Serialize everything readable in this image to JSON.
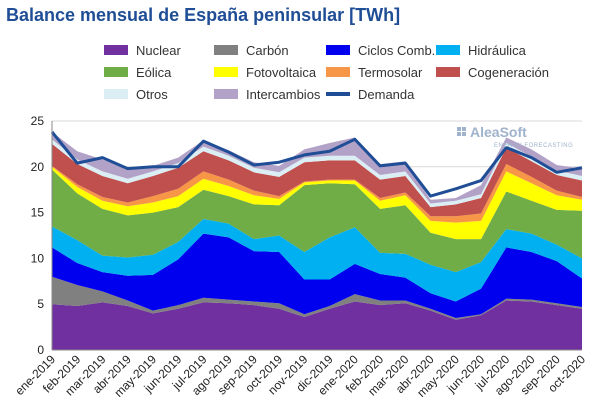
{
  "chart_data": {
    "type": "area",
    "stacked": true,
    "title": "Balance mensual de España peninsular [TWh]",
    "xlabel": "",
    "ylabel": "",
    "ylim": [
      0,
      25
    ],
    "yticks": [
      0,
      5,
      10,
      15,
      20,
      25
    ],
    "grid": true,
    "legend_position": "top",
    "categories": [
      "ene-2019",
      "feb-2019",
      "mar-2019",
      "abr-2019",
      "may-2019",
      "jun-2019",
      "jul-2019",
      "ago-2019",
      "sep-2019",
      "oct-2019",
      "nov-2019",
      "dic-2019",
      "ene-2020",
      "feb-2020",
      "mar-2020",
      "abr-2020",
      "may-2020",
      "jun-2020",
      "jul-2020",
      "ago-2020",
      "sep-2020",
      "oct-2020"
    ],
    "series": [
      {
        "name": "Nuclear",
        "color": "#7030a0",
        "values": [
          5.0,
          4.8,
          5.2,
          4.8,
          4.0,
          4.5,
          5.2,
          5.1,
          4.9,
          4.5,
          3.6,
          4.5,
          5.3,
          4.9,
          5.1,
          4.3,
          3.3,
          3.8,
          5.4,
          5.3,
          4.9,
          4.5
        ]
      },
      {
        "name": "Carbón",
        "color": "#808080",
        "values": [
          3.0,
          2.3,
          1.2,
          0.6,
          0.3,
          0.4,
          0.5,
          0.4,
          0.4,
          0.6,
          0.3,
          0.3,
          0.8,
          0.5,
          0.3,
          0.2,
          0.2,
          0.1,
          0.2,
          0.2,
          0.2,
          0.2
        ]
      },
      {
        "name": "Ciclos Comb.",
        "color": "#0000ee",
        "values": [
          3.2,
          2.4,
          2.1,
          2.7,
          3.9,
          5.0,
          7.0,
          6.8,
          5.5,
          5.6,
          3.8,
          2.9,
          3.3,
          2.9,
          2.5,
          1.7,
          1.8,
          2.8,
          5.6,
          5.2,
          4.6,
          3.1
        ]
      },
      {
        "name": "Hidráulica",
        "color": "#00b0f0",
        "values": [
          2.3,
          2.5,
          1.8,
          2.0,
          2.2,
          1.9,
          1.6,
          1.5,
          1.3,
          1.8,
          3.0,
          4.6,
          4.0,
          2.3,
          2.6,
          3.1,
          3.2,
          2.9,
          2.0,
          2.0,
          1.8,
          2.2
        ]
      },
      {
        "name": "Eólica",
        "color": "#70ad47",
        "values": [
          6.2,
          5.1,
          5.1,
          4.6,
          4.6,
          3.8,
          3.2,
          3.0,
          3.8,
          3.3,
          7.3,
          5.9,
          4.7,
          4.8,
          5.3,
          3.5,
          3.6,
          2.5,
          4.1,
          3.6,
          3.8,
          5.2
        ]
      },
      {
        "name": "Fotovoltaica",
        "color": "#ffff00",
        "values": [
          0.3,
          0.7,
          0.9,
          1.0,
          1.1,
          1.2,
          1.2,
          1.1,
          1.0,
          0.7,
          0.3,
          0.3,
          0.4,
          0.9,
          1.1,
          1.3,
          1.8,
          2.0,
          2.2,
          1.9,
          1.6,
          1.2
        ]
      },
      {
        "name": "Termosolar",
        "color": "#f79646",
        "values": [
          0.1,
          0.3,
          0.4,
          0.4,
          0.7,
          0.8,
          0.8,
          0.7,
          0.5,
          0.3,
          0.1,
          0.1,
          0.1,
          0.3,
          0.3,
          0.5,
          0.7,
          0.8,
          0.8,
          0.7,
          0.5,
          0.3
        ]
      },
      {
        "name": "Cogeneración",
        "color": "#c0504d",
        "values": [
          2.4,
          2.2,
          2.3,
          2.1,
          2.2,
          2.3,
          2.2,
          2.1,
          2.0,
          2.1,
          2.1,
          2.1,
          2.1,
          2.0,
          1.8,
          1.0,
          1.3,
          1.7,
          1.8,
          1.7,
          1.7,
          1.8
        ]
      },
      {
        "name": "Otros",
        "color": "#dbeef4",
        "values": [
          0.5,
          0.5,
          0.5,
          0.5,
          0.5,
          0.5,
          0.5,
          0.5,
          0.5,
          0.5,
          0.5,
          0.5,
          0.5,
          0.5,
          0.5,
          0.4,
          0.4,
          0.4,
          0.5,
          0.5,
          0.5,
          0.5
        ]
      },
      {
        "name": "Intercambios",
        "color": "#b3a2c7",
        "values": [
          0.8,
          0.9,
          1.3,
          1.0,
          0.6,
          0.6,
          0.7,
          0.6,
          0.6,
          0.7,
          0.9,
          1.4,
          2.0,
          1.2,
          1.1,
          0.4,
          0.3,
          1.0,
          0.6,
          0.8,
          0.6,
          0.8
        ]
      }
    ],
    "demanda": {
      "name": "Demanda",
      "color": "#1f4e96",
      "values": [
        23.8,
        20.4,
        21.0,
        19.8,
        20.0,
        20.0,
        22.8,
        21.6,
        20.2,
        20.5,
        21.3,
        21.7,
        23.0,
        20.1,
        20.4,
        16.8,
        17.6,
        18.5,
        22.1,
        21.0,
        19.4,
        19.9
      ]
    }
  },
  "watermark": {
    "brand": "AleaSoft",
    "tagline": "ENERGY FORECASTING"
  }
}
